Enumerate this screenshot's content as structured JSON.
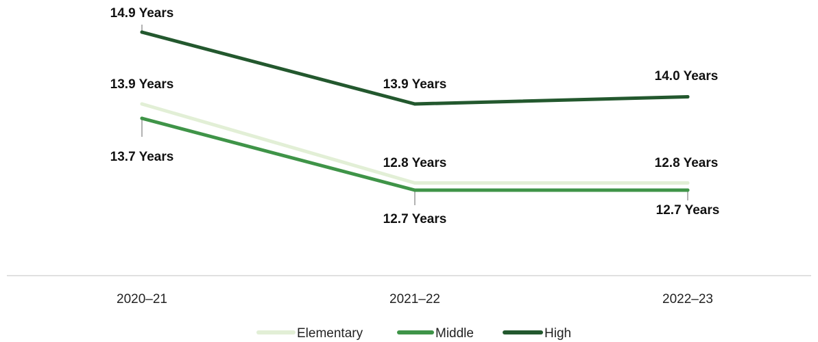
{
  "chart_data": {
    "type": "line",
    "categories": [
      "2020–21",
      "2021–22",
      "2022–23"
    ],
    "series": [
      {
        "name": "Elementary",
        "color": "#e2efd6",
        "values": [
          13.9,
          12.8,
          12.8
        ],
        "labels": [
          "13.9 Years",
          "12.8 Years",
          "12.8 Years"
        ]
      },
      {
        "name": "Middle",
        "color": "#3f9448",
        "values": [
          13.7,
          12.7,
          12.7
        ],
        "labels": [
          "13.7 Years",
          "12.7 Years",
          "12.7 Years"
        ]
      },
      {
        "name": "High",
        "color": "#23582e",
        "values": [
          14.9,
          13.9,
          14.0
        ],
        "labels": [
          "14.9 Years",
          "13.9 Years",
          "14.0 Years"
        ]
      }
    ],
    "ylim": [
      12.0,
      15.2
    ],
    "grid": false,
    "legend": "bottom"
  }
}
